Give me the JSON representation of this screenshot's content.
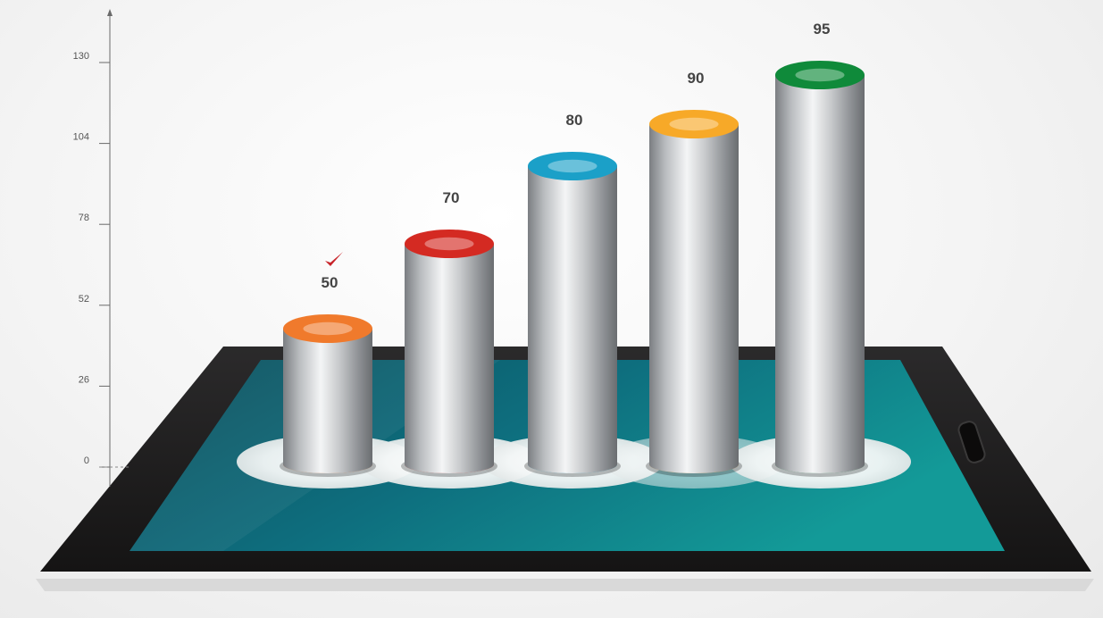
{
  "chart_data": {
    "type": "bar",
    "categories": [
      "",
      "",
      "",
      "",
      ""
    ],
    "values": [
      50,
      70,
      80,
      90,
      95
    ],
    "data_labels": [
      "50",
      "70",
      "80",
      "90",
      "95"
    ],
    "bar_cap_colors": [
      "#f07a2c",
      "#d42a22",
      "#1ba0c8",
      "#f7a928",
      "#0f8a3a"
    ],
    "ylim": [
      0,
      130
    ],
    "yticks": [
      0,
      26,
      52,
      78,
      104,
      130
    ],
    "ytick_labels": [
      "0",
      "26",
      "52",
      "78",
      "104",
      "130"
    ],
    "xlabel": "",
    "ylabel": "",
    "title": "",
    "grid": false,
    "style": "3d-cylinder",
    "highlighted_index": 0,
    "highlight_icon": "checkmark-icon"
  },
  "device": {
    "type": "tablet",
    "screen_color": "#0f7d88",
    "bezel_color": "#1c1a1b"
  }
}
